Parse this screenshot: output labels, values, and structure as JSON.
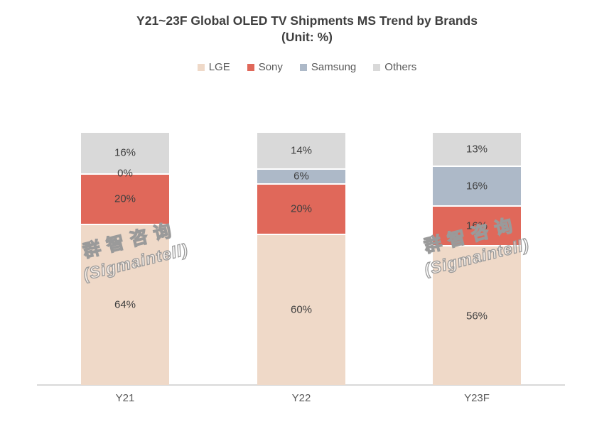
{
  "title": {
    "line1": "Y21~23F Global OLED TV Shipments MS Trend by Brands",
    "line2": "(Unit: %)"
  },
  "watermark": {
    "line1": "群智咨询",
    "line2": "(Sigmaintell)"
  },
  "colors": {
    "lge": "#efd9c8",
    "sony": "#e0685a",
    "samsung": "#adb9c8",
    "others": "#d9d9d9",
    "axis": "#d9d9d9",
    "title_text": "#3f3f3f",
    "label_text": "#404040",
    "category_text": "#595959",
    "separator": "#ffffff",
    "watermark_outline": "#9a9a9a"
  },
  "chart_data": {
    "type": "bar",
    "stacked": true,
    "unit": "%",
    "title": "Y21~23F Global OLED TV Shipments MS Trend by Brands",
    "subtitle": "(Unit: %)",
    "categories": [
      "Y21",
      "Y22",
      "Y23F"
    ],
    "series": [
      {
        "name": "LGE",
        "color": "#efd9c8",
        "values": [
          64,
          60,
          56
        ]
      },
      {
        "name": "Sony",
        "color": "#e0685a",
        "values": [
          20,
          20,
          16
        ]
      },
      {
        "name": "Samsung",
        "color": "#adb9c8",
        "values": [
          0,
          6,
          16
        ]
      },
      {
        "name": "Others",
        "color": "#d9d9d9",
        "values": [
          16,
          14,
          13
        ]
      }
    ],
    "data_labels": [
      "%"
    ],
    "label_format": "{value}%",
    "xlabel": "",
    "ylabel": "",
    "ylim": [
      0,
      100
    ],
    "grid": false,
    "y_axis_visible": false,
    "legend_position": "top"
  }
}
